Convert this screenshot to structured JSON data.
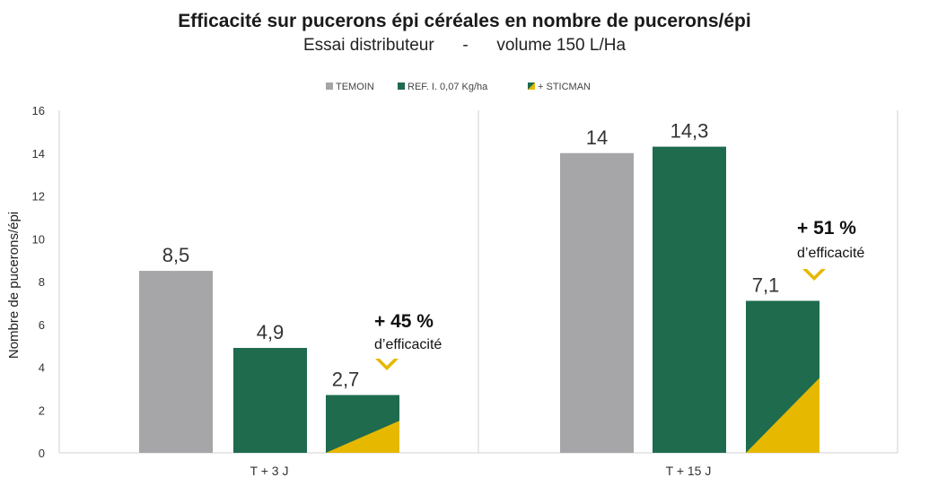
{
  "chart_data": {
    "type": "bar",
    "title": "Efficacité sur pucerons épi céréales en nombre de pucerons/épi",
    "subtitle": "Essai distributeur      -      volume 150 L/Ha",
    "xlabel": "",
    "ylabel": "Nombre de pucerons/épi",
    "ylim": [
      0,
      16
    ],
    "yticks": [
      0,
      2,
      4,
      6,
      8,
      10,
      12,
      14,
      16
    ],
    "categories": [
      "T + 3 J",
      "T + 15 J"
    ],
    "series": [
      {
        "name": "TEMOIN",
        "color": "#a6a6a8",
        "values": [
          8.5,
          14
        ],
        "labels": [
          "8,5",
          "14"
        ]
      },
      {
        "name": "REF. I. 0,07 Kg/ha",
        "color": "#1e6b4e",
        "values": [
          4.9,
          14.3
        ],
        "labels": [
          "4,9",
          "14,3"
        ]
      },
      {
        "name": "+ STICMAN",
        "color": "#1e6b4e",
        "accent": "#e6b800",
        "values": [
          2.7,
          7.1
        ],
        "labels": [
          "2,7",
          "7,1"
        ],
        "yellow_fill": [
          1.5,
          3.5
        ]
      }
    ],
    "annotations": [
      {
        "category": "T + 3 J",
        "line1": "+ 45 %",
        "line2": "d’efficacité"
      },
      {
        "category": "T + 15 J",
        "line1": "+ 51 %",
        "line2": "d’efficacité"
      }
    ],
    "legend_position": "top",
    "grid": false
  }
}
